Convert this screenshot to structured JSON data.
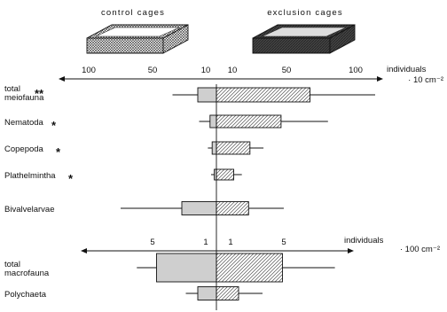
{
  "colors": {
    "ink": "#111111",
    "paper": "#ffffff"
  },
  "legend": {
    "control_label": "control  cages",
    "exclusion_label": "exclusion  cages"
  },
  "chart_data": [
    {
      "type": "bar",
      "panel": "meiofauna",
      "axis": {
        "ticks_left": [
          "100",
          "50",
          "10"
        ],
        "ticks_right": [
          "10",
          "50",
          "100"
        ],
        "unit_line1": "individuals",
        "unit_line2": "· 10 cm⁻²",
        "xlim": [
          -115,
          115
        ]
      },
      "categories": [
        "total meiofauna",
        "Nematoda",
        "Copepoda",
        "Plathelmintha",
        "Bivalvelarvae"
      ],
      "significance": [
        "**",
        "*",
        "*",
        "*",
        ""
      ],
      "series": [
        {
          "side": "control",
          "mean": [
            16,
            6,
            4,
            2,
            28
          ],
          "whisker": [
            35,
            15,
            8,
            5,
            75
          ]
        },
        {
          "side": "exclusion",
          "mean": [
            67,
            46,
            23,
            11,
            22
          ],
          "whisker": [
            120,
            80,
            33,
            17,
            48
          ]
        }
      ]
    },
    {
      "type": "bar",
      "panel": "macrofauna",
      "axis": {
        "ticks_left": [
          "5",
          "1"
        ],
        "ticks_right": [
          "1",
          "5"
        ],
        "unit_line1": "individuals",
        "unit_line2": "· 100 cm⁻²",
        "xlim": [
          -7.3,
          7.3
        ]
      },
      "categories": [
        "total macrofauna",
        "Polychaeta"
      ],
      "significance": [
        "",
        ""
      ],
      "series": [
        {
          "side": "control",
          "mean": [
            4.7,
            1.6
          ],
          "whisker": [
            6.9,
            2.5
          ]
        },
        {
          "side": "exclusion",
          "mean": [
            4.9,
            1.6
          ],
          "whisker": [
            8.6,
            3.4
          ]
        }
      ]
    }
  ]
}
